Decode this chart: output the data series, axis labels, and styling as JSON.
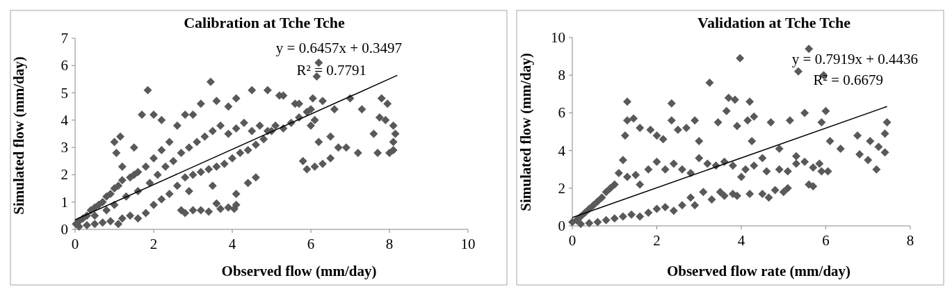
{
  "chart_data": [
    {
      "type": "scatter",
      "title": "Calibration at Tche Tche",
      "xlabel": "Observed flow (mm/day)",
      "ylabel": "Simulated flow (mm/day)",
      "xlim": [
        0,
        10
      ],
      "ylim": [
        0,
        7
      ],
      "xticks": [
        0,
        2,
        4,
        6,
        8,
        10
      ],
      "yticks": [
        0,
        1,
        2,
        3,
        4,
        5,
        6,
        7
      ],
      "annotations": [
        "y = 0.6457x + 0.3497",
        "R² = 0.7791"
      ],
      "series": [
        {
          "marker": "diamond",
          "color": "#595959",
          "x": [
            0.02,
            0.1,
            0.2,
            0.3,
            0.4,
            0.5,
            0.6,
            0.7,
            0.8,
            0.9,
            1.0,
            1.1,
            1.2,
            1.4,
            1.5,
            1.6,
            1.8,
            2.0,
            2.2,
            2.4,
            0.1,
            0.3,
            0.5,
            0.7,
            0.9,
            1.1,
            1.2,
            1.4,
            1.6,
            1.8,
            2.0,
            2.2,
            2.4,
            2.6,
            2.8,
            3.0,
            3.2,
            3.4,
            3.6,
            3.8,
            4.0,
            4.2,
            4.4,
            4.6,
            4.8,
            5.0,
            0.5,
            0.8,
            1.0,
            1.3,
            1.6,
            1.9,
            2.1,
            2.3,
            2.5,
            2.7,
            2.9,
            3.1,
            3.3,
            3.5,
            3.7,
            3.9,
            4.1,
            4.3,
            4.5,
            4.7,
            4.9,
            5.1,
            5.3,
            5.5,
            5.7,
            5.9,
            6.0,
            6.1,
            1.0,
            1.15,
            1.05,
            1.2,
            1.5,
            1.7,
            1.85,
            2.0,
            2.2,
            2.6,
            2.8,
            3.0,
            3.2,
            3.45,
            3.6,
            3.9,
            4.1,
            4.5,
            4.9,
            5.2,
            5.3,
            5.6,
            6.05,
            6.15,
            6.2,
            6.3,
            2.7,
            2.8,
            3.0,
            3.2,
            3.4,
            3.7,
            3.9,
            4.05,
            4.1,
            2.9,
            3.5,
            3.6,
            4.1,
            4.4,
            4.6,
            5.8,
            5.9,
            6.1,
            6.3,
            6.5,
            6.7,
            6.9,
            6.5,
            6.6,
            7.0,
            7.2,
            7.3,
            7.6,
            7.7,
            7.75,
            7.8,
            7.9,
            7.95,
            8.0,
            8.1,
            8.1,
            8.15,
            8.1,
            6.0,
            6.2,
            5.7
          ],
          "values": [
            0.2,
            0.3,
            0.4,
            0.5,
            0.7,
            0.8,
            0.9,
            1.0,
            1.2,
            1.3,
            1.5,
            1.6,
            1.8,
            1.9,
            2.0,
            2.1,
            2.3,
            2.6,
            2.9,
            3.2,
            0.1,
            0.15,
            0.2,
            0.25,
            0.3,
            0.2,
            0.4,
            0.5,
            0.4,
            0.6,
            0.9,
            1.1,
            1.3,
            1.6,
            1.9,
            2.0,
            2.1,
            2.2,
            2.3,
            2.4,
            2.6,
            2.8,
            2.9,
            3.1,
            3.3,
            3.6,
            0.5,
            0.7,
            0.9,
            1.2,
            1.4,
            1.7,
            2.0,
            2.3,
            2.5,
            2.8,
            3.0,
            3.2,
            3.4,
            3.6,
            3.8,
            3.5,
            3.7,
            3.9,
            3.6,
            3.8,
            3.6,
            3.8,
            3.7,
            3.9,
            4.1,
            4.3,
            4.4,
            4.0,
            3.2,
            3.4,
            2.8,
            2.3,
            3.0,
            4.2,
            5.1,
            4.2,
            4.0,
            3.8,
            4.2,
            4.2,
            4.6,
            5.4,
            4.7,
            4.5,
            4.8,
            5.1,
            5.1,
            4.9,
            4.9,
            4.6,
            4.8,
            5.6,
            6.1,
            4.7,
            0.7,
            0.6,
            0.7,
            0.7,
            0.65,
            0.75,
            0.8,
            0.75,
            0.9,
            1.4,
            1.6,
            0.95,
            1.3,
            1.7,
            1.9,
            2.5,
            2.2,
            2.3,
            2.4,
            2.6,
            3.0,
            3.0,
            3.4,
            4.4,
            4.8,
            2.8,
            4.4,
            3.5,
            2.8,
            4.1,
            4.8,
            4.0,
            4.6,
            2.8,
            3.2,
            3.8,
            3.5,
            2.9,
            3.8,
            3.2,
            4.6
          ]
        },
        {
          "type": "line",
          "color": "#000000",
          "x": [
            0,
            8.2
          ],
          "values": [
            0.35,
            5.64
          ]
        }
      ]
    },
    {
      "type": "scatter",
      "title": "Validation at Tche Tche",
      "xlabel": "Observed flow rate (mm/day)",
      "ylabel": "Simulated flow (mm/day)",
      "xlim": [
        0,
        8
      ],
      "ylim": [
        0,
        10
      ],
      "xticks": [
        0,
        2,
        4,
        6,
        8
      ],
      "yticks": [
        0,
        2,
        4,
        6,
        8,
        10
      ],
      "annotations": [
        "y = 0.7919x + 0.4436",
        "R² = 0.6679"
      ],
      "series": [
        {
          "marker": "diamond",
          "color": "#595959",
          "x": [
            0,
            0.1,
            0.2,
            0.3,
            0.4,
            0.5,
            0.6,
            0.7,
            0.8,
            0.9,
            1.0,
            0.2,
            0.4,
            0.6,
            0.8,
            1.0,
            1.2,
            1.4,
            1.6,
            1.8,
            2.0,
            2.2,
            2.4,
            2.6,
            2.8,
            2.9,
            3.1,
            3.3,
            3.5,
            3.6,
            3.8,
            3.9,
            4.2,
            4.5,
            4.65,
            4.8,
            5.0,
            5.1,
            5.6,
            5.7,
            1.1,
            1.2,
            1.3,
            1.5,
            1.6,
            1.8,
            2.0,
            2.2,
            2.4,
            2.6,
            2.8,
            3.0,
            3.2,
            3.4,
            3.6,
            3.8,
            4.0,
            4.1,
            4.3,
            4.5,
            4.6,
            4.9,
            5.1,
            5.3,
            5.5,
            5.7,
            5.9,
            6.05,
            5.85,
            1.25,
            1.3,
            1.3,
            1.45,
            1.6,
            1.85,
            2.0,
            2.15,
            2.35,
            2.35,
            2.5,
            2.7,
            2.9,
            3.0,
            3.25,
            3.45,
            3.65,
            3.7,
            3.85,
            3.9,
            4.15,
            4.2,
            4.3,
            4.25,
            4.7,
            5.15,
            5.5,
            5.9,
            6.0,
            6.1,
            6.35,
            6.75,
            6.8,
            7.05,
            7.0,
            7.2,
            7.25,
            7.4,
            7.4,
            7.45,
            5.35,
            5.6,
            5.95,
            3.97,
            4.9,
            5.3
          ],
          "values": [
            0.2,
            0.3,
            0.5,
            0.7,
            0.9,
            1.1,
            1.3,
            1.5,
            1.8,
            2.0,
            2.2,
            0.1,
            0.15,
            0.2,
            0.3,
            0.4,
            0.5,
            0.6,
            0.5,
            0.7,
            0.9,
            1.0,
            0.8,
            1.1,
            1.5,
            1.1,
            1.8,
            1.4,
            1.8,
            1.6,
            1.7,
            1.6,
            1.7,
            1.7,
            1.5,
            1.9,
            1.8,
            2.0,
            2.2,
            2.1,
            2.8,
            3.5,
            2.6,
            2.7,
            2.2,
            3.0,
            3.4,
            3.0,
            3.3,
            3.0,
            2.8,
            3.6,
            3.3,
            3.2,
            3.4,
            3.2,
            2.6,
            3.0,
            3.2,
            3.6,
            2.9,
            3.0,
            2.9,
            3.3,
            3.4,
            3.1,
            2.9,
            2.9,
            3.3,
            4.8,
            5.6,
            6.6,
            5.7,
            5.2,
            5.1,
            4.8,
            4.6,
            6.5,
            5.6,
            5.1,
            5.2,
            5.6,
            4.5,
            7.6,
            5.5,
            6.1,
            6.8,
            6.7,
            5.3,
            5.6,
            6.6,
            5.8,
            4.5,
            5.5,
            5.6,
            6.0,
            5.5,
            6.1,
            4.5,
            4.1,
            4.8,
            3.8,
            4.5,
            3.5,
            3.0,
            4.2,
            3.9,
            4.9,
            5.5,
            8.2,
            9.4,
            8.0,
            8.9,
            4.1,
            3.7
          ]
        },
        {
          "type": "line",
          "color": "#000000",
          "x": [
            0,
            7.45
          ],
          "values": [
            0.44,
            6.34
          ]
        }
      ]
    }
  ]
}
